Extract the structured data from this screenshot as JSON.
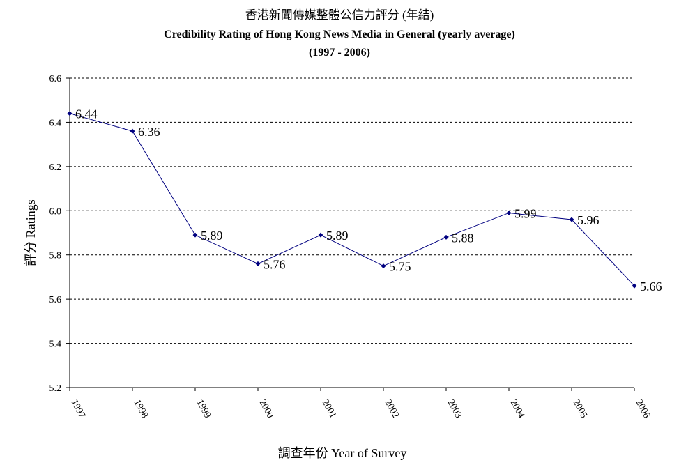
{
  "chart_data": {
    "type": "line",
    "title": "香港新聞傳媒整體公信力評分  (年結)",
    "subtitle": "Credibility Rating of Hong Kong News Media in General (yearly average)",
    "subtitle2": "(1997 - 2006)",
    "xlabel": "調查年份 Year of Survey",
    "ylabel": "評分 Ratings",
    "categories": [
      "1997",
      "1998",
      "1999",
      "2000",
      "2001",
      "2002",
      "2003",
      "2004",
      "2005",
      "2006"
    ],
    "series": [
      {
        "values": [
          6.44,
          6.36,
          5.89,
          5.76,
          5.89,
          5.75,
          5.88,
          5.99,
          5.96,
          5.66
        ],
        "labels": [
          "6.44",
          "6.36",
          "5.89",
          "5.76",
          "5.89",
          "5.75",
          "5.88",
          "5.99",
          "5.96",
          "5.66"
        ],
        "color": "#000080"
      }
    ],
    "yticks": [
      "5.2",
      "5.4",
      "5.6",
      "5.8",
      "6.0",
      "6.2",
      "6.4",
      "6.6"
    ],
    "ylim": [
      5.2,
      6.6
    ],
    "grid": true,
    "grid_style": "dotted horizontal",
    "legend": "none"
  }
}
